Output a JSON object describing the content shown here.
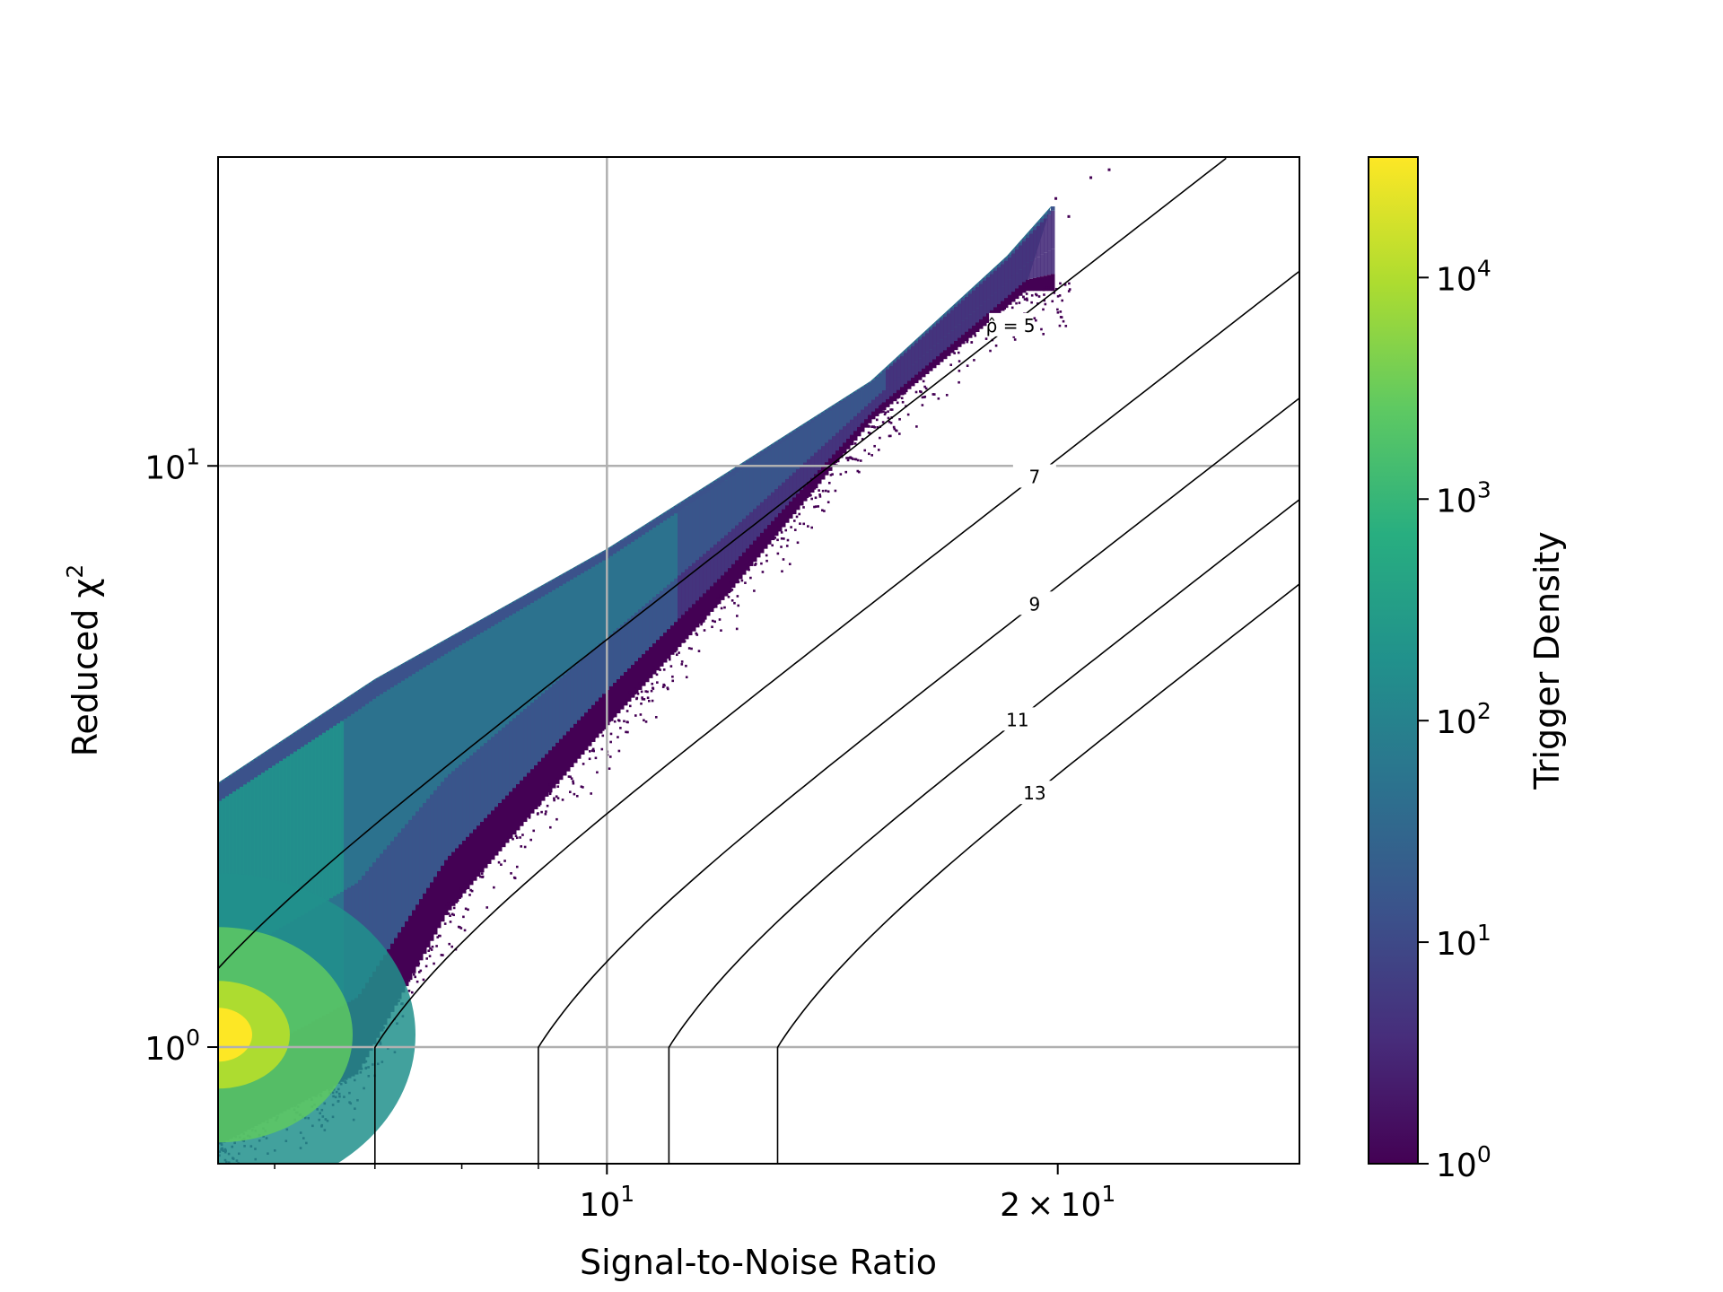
{
  "chart_data": {
    "type": "heatmap",
    "subtype": "hexbin-density",
    "title": "",
    "xlabel": "Signal-to-Noise Ratio",
    "ylabel": "Reduced χ²",
    "xscale": "log",
    "yscale": "log",
    "xlim": [
      5.5,
      29
    ],
    "ylim": [
      0.63,
      34
    ],
    "grid": true,
    "x_ticks": [
      {
        "value": 10,
        "base": "10",
        "exp": "1",
        "label": "10¹"
      },
      {
        "value": 20,
        "base": "2×10",
        "exp": "1",
        "label": "2×10¹"
      }
    ],
    "y_ticks": [
      {
        "value": 1,
        "base": "10",
        "exp": "0",
        "label": "10⁰"
      },
      {
        "value": 10,
        "base": "10",
        "exp": "1",
        "label": "10¹"
      }
    ],
    "colorbar": {
      "label": "Trigger Density",
      "scale": "log",
      "colormap": "viridis",
      "range": [
        1,
        35000
      ],
      "ticks": [
        {
          "value": 1,
          "base": "10",
          "exp": "0"
        },
        {
          "value": 10,
          "base": "10",
          "exp": "1"
        },
        {
          "value": 100,
          "base": "10",
          "exp": "2"
        },
        {
          "value": 1000,
          "base": "10",
          "exp": "3"
        },
        {
          "value": 10000,
          "base": "10",
          "exp": "4"
        }
      ]
    },
    "density_core": {
      "snr": 5.5,
      "chisq": 1.05,
      "peak_density": 35000
    },
    "density_upper_edge": [
      {
        "snr": 5.5,
        "chisq": 2.85
      },
      {
        "snr": 7.0,
        "chisq": 4.3
      },
      {
        "snr": 10.0,
        "chisq": 7.2
      },
      {
        "snr": 15.0,
        "chisq": 14.0
      },
      {
        "snr": 18.5,
        "chisq": 23.0
      },
      {
        "snr": 19.8,
        "chisq": 28.0
      }
    ],
    "density_lower_edge": [
      {
        "snr": 5.5,
        "chisq": 0.68
      },
      {
        "snr": 6.8,
        "chisq": 0.9
      },
      {
        "snr": 7.8,
        "chisq": 1.7
      },
      {
        "snr": 10.0,
        "chisq": 3.6
      },
      {
        "snr": 12.0,
        "chisq": 6.0
      },
      {
        "snr": 15.0,
        "chisq": 12.0
      },
      {
        "snr": 19.0,
        "chisq": 20.0
      }
    ],
    "contours": [
      {
        "label": "ρ̂ = 5",
        "newsnr": 5
      },
      {
        "label": "7",
        "newsnr": 7
      },
      {
        "label": "9",
        "newsnr": 9
      },
      {
        "label": "11",
        "newsnr": 11
      },
      {
        "label": "13",
        "newsnr": 13
      }
    ],
    "contour_formula": "newsnr = snr for chisq<=1; snr / ((1 + chisq^3)/2)^(1/6) otherwise"
  },
  "colors": {
    "contour": "#000000",
    "grid": "#b0b0b0",
    "axis": "#000000"
  }
}
